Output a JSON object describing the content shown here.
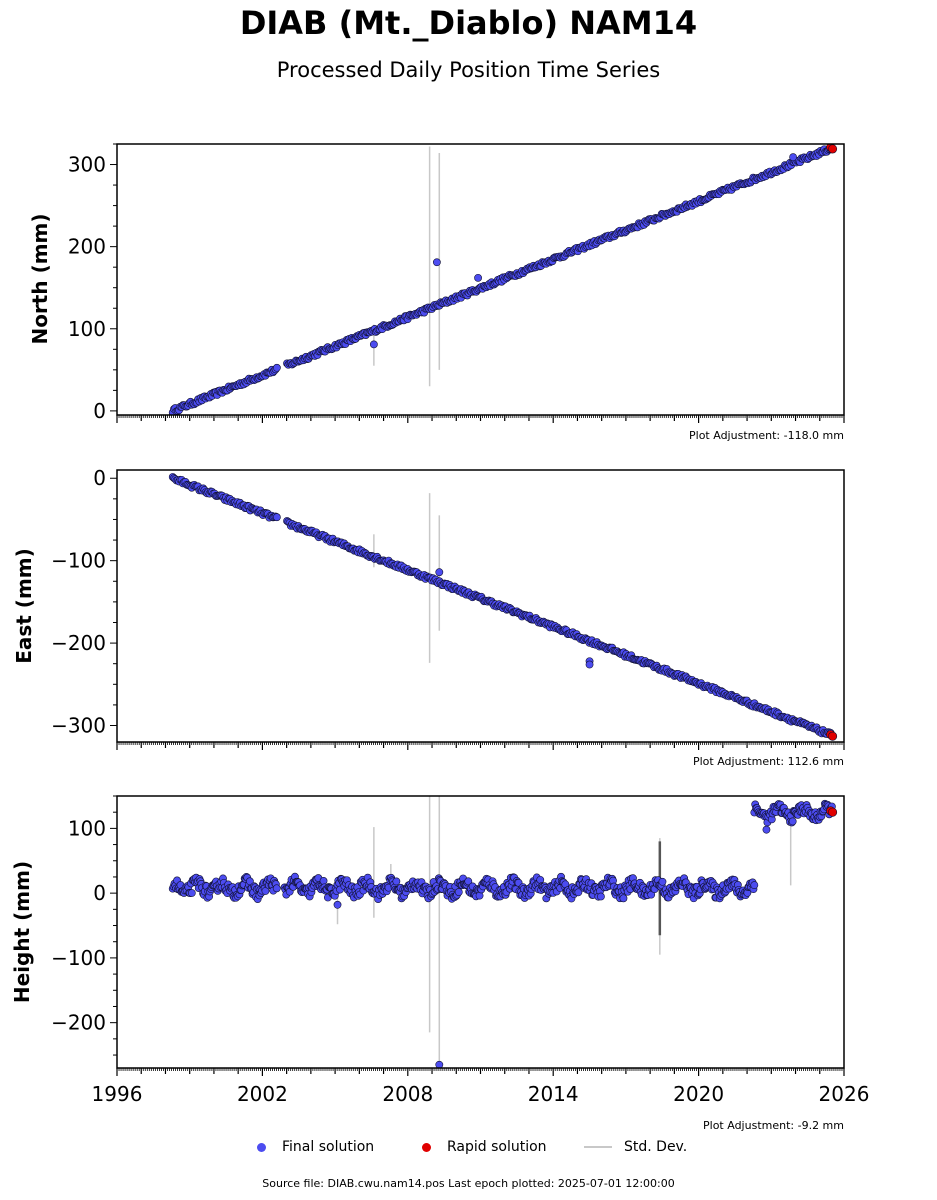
{
  "header": {
    "title": "DIAB (Mt._Diablo) NAM14",
    "subtitle": "Processed Daily Position Time Series"
  },
  "chart_data": [
    {
      "type": "scatter",
      "ylabel": "North (mm)",
      "xlim": [
        1996,
        2026
      ],
      "ylim": [
        -5,
        325
      ],
      "yticks": [
        0,
        100,
        200,
        300
      ],
      "ytick_labels": [
        "0",
        "100",
        "200",
        "300"
      ],
      "adjustment": "Plot Adjustment: -118.0 mm",
      "trend": {
        "x0": 1998.3,
        "y0": 0,
        "x1": 2025.5,
        "y1": 320
      },
      "outliers": [
        {
          "x": 2009.2,
          "y": 181
        },
        {
          "x": 2006.6,
          "y": 81
        },
        {
          "x": 2010.9,
          "y": 162
        },
        {
          "x": 2023.9,
          "y": 309
        }
      ],
      "std_bars": [
        {
          "x": 2008.9,
          "y0": 30,
          "y1": 322
        },
        {
          "x": 2009.3,
          "y0": 50,
          "y1": 314
        },
        {
          "x": 2006.6,
          "y0": 55,
          "y1": 105
        }
      ],
      "rapid": [
        {
          "x": 2025.5,
          "y": 320
        }
      ]
    },
    {
      "type": "scatter",
      "ylabel": "East (mm)",
      "xlim": [
        1996,
        2026
      ],
      "ylim": [
        -320,
        10
      ],
      "yticks": [
        0,
        -100,
        -200,
        -300
      ],
      "ytick_labels": [
        "0",
        "−100",
        "−200",
        "−300"
      ],
      "adjustment": "Plot Adjustment: 112.6 mm",
      "trend": {
        "x0": 1998.3,
        "y0": 0,
        "x1": 2025.5,
        "y1": -312
      },
      "outliers": [
        {
          "x": 2015.5,
          "y": -222
        },
        {
          "x": 2015.5,
          "y": -226
        },
        {
          "x": 2009.3,
          "y": -114
        }
      ],
      "std_bars": [
        {
          "x": 2008.9,
          "y0": -224,
          "y1": -18
        },
        {
          "x": 2009.3,
          "y0": -185,
          "y1": -45
        },
        {
          "x": 2006.6,
          "y0": -108,
          "y1": -68
        }
      ],
      "rapid": [
        {
          "x": 2025.5,
          "y": -312
        }
      ]
    },
    {
      "type": "scatter",
      "ylabel": "Height (mm)",
      "xlim": [
        1996,
        2026
      ],
      "ylim": [
        -270,
        150
      ],
      "yticks": [
        100,
        0,
        -100,
        -200
      ],
      "ytick_labels": [
        "100",
        "0",
        "−100",
        "−200"
      ],
      "xticks": [
        1996,
        2002,
        2008,
        2014,
        2020,
        2026
      ],
      "xtick_labels": [
        "1996",
        "2002",
        "2008",
        "2014",
        "2020",
        "2026"
      ],
      "adjustment": "Plot Adjustment: -9.2 mm",
      "segments": [
        {
          "x0": 1998.3,
          "x1": 2022.3,
          "y": 8,
          "spread": 16
        },
        {
          "x0": 2022.3,
          "x1": 2025.5,
          "y": 124,
          "spread": 14
        }
      ],
      "outliers": [
        {
          "x": 2009.3,
          "y": -265
        },
        {
          "x": 2005.1,
          "y": -18
        },
        {
          "x": 2022.8,
          "y": 98
        }
      ],
      "std_bars": [
        {
          "x": 2008.9,
          "y0": -215,
          "y1": 150
        },
        {
          "x": 2009.3,
          "y0": -260,
          "y1": 150
        },
        {
          "x": 2006.6,
          "y0": -38,
          "y1": 102
        },
        {
          "x": 2005.1,
          "y0": -48,
          "y1": 5
        },
        {
          "x": 2018.4,
          "y0": -95,
          "y1": 85
        },
        {
          "x": 2023.8,
          "y0": 12,
          "y1": 118
        },
        {
          "x": 2007.3,
          "y0": 10,
          "y1": 45
        }
      ],
      "dark_bars": [
        {
          "x": 2018.4,
          "y0": -65,
          "y1": 80
        }
      ],
      "rapid": [
        {
          "x": 2025.5,
          "y": 126
        }
      ]
    }
  ],
  "legend": {
    "final_label": "Final solution",
    "rapid_label": "Rapid solution",
    "std_label": "Std. Dev.",
    "final_color": "#4c4cf0",
    "rapid_color": "#e00000",
    "std_color": "#c8c8c8"
  },
  "footer": {
    "source_text": "Source file: DIAB.cwu.nam14.pos  Last epoch plotted: 2025-07-01 12:00:00"
  }
}
